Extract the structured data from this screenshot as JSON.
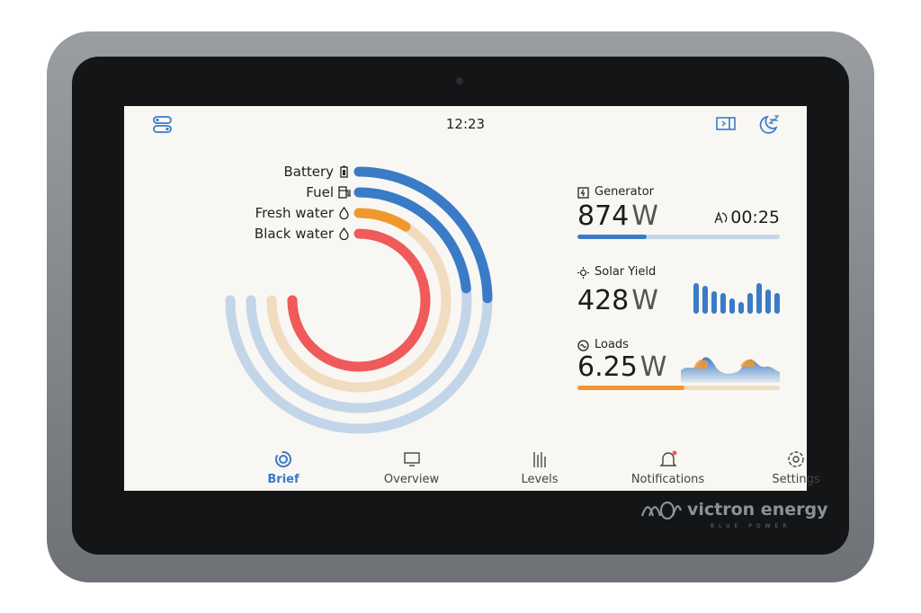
{
  "header": {
    "time": "12:23",
    "left_icon": "toggles-icon",
    "right_icons": [
      "side-panel-icon",
      "sleep-moon-icon"
    ]
  },
  "tanks": [
    {
      "label": "Battery",
      "icon": "battery-icon",
      "level": 0.33,
      "color": "#3a7bc8",
      "track": "#c3d5e8"
    },
    {
      "label": "Fuel",
      "icon": "fuel-pump-icon",
      "level": 0.31,
      "color": "#3a7bc8",
      "track": "#c3d5e8"
    },
    {
      "label": "Fresh water",
      "icon": "water-drop-icon",
      "level": 0.12,
      "color": "#f0982e",
      "track": "#f1dcc0"
    },
    {
      "label": "Black water",
      "icon": "water-drop-icon",
      "level": 1.0,
      "color": "#f05a5a",
      "track": "#f4c6c6"
    }
  ],
  "cards": {
    "generator": {
      "title": "Generator",
      "value": "874",
      "unit": "W",
      "timer": "00:25",
      "progress": 0.34,
      "color": "#3a7bc8"
    },
    "solar": {
      "title": "Solar Yield",
      "value": "428",
      "unit": "W",
      "bars": [
        0.9,
        0.82,
        0.65,
        0.6,
        0.45,
        0.35,
        0.6,
        0.9,
        0.7,
        0.6
      ]
    },
    "loads": {
      "title": "Loads",
      "value": "6.25",
      "unit": "W",
      "progress": 0.53,
      "color": "#f0982e"
    }
  },
  "nav": [
    {
      "label": "Brief",
      "icon": "brief-icon",
      "active": true
    },
    {
      "label": "Overview",
      "icon": "monitor-icon"
    },
    {
      "label": "Levels",
      "icon": "levels-icon"
    },
    {
      "label": "Notifications",
      "icon": "bell-icon"
    },
    {
      "label": "Settings",
      "icon": "gear-icon"
    }
  ],
  "brand": {
    "name": "victron energy",
    "tagline": "BLUE POWER"
  },
  "colors": {
    "accent": "#3a7bc8",
    "screen": "#f8f7f3"
  }
}
